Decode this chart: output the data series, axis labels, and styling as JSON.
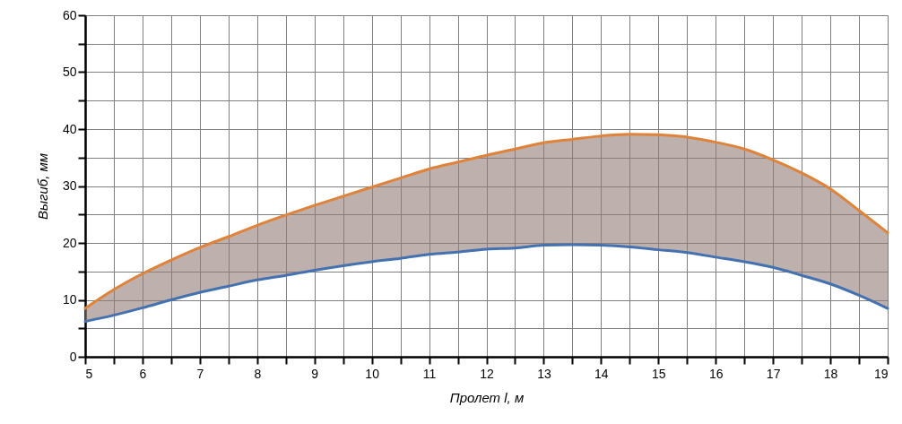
{
  "chart_data": {
    "type": "line",
    "xlabel": "Пролет l, м",
    "ylabel": "Выгиб, мм",
    "x": [
      5,
      5.5,
      6,
      6.5,
      7,
      7.5,
      8,
      8.5,
      9,
      9.5,
      10,
      10.5,
      11,
      11.5,
      12,
      12.5,
      13,
      13.5,
      14,
      14.5,
      15,
      15.5,
      16,
      16.5,
      17,
      17.5,
      18,
      18.5,
      19
    ],
    "series": [
      {
        "color": "#e0833a",
        "values": [
          8.5,
          11.8,
          14.6,
          17,
          19.2,
          21.1,
          23.1,
          24.9,
          26.6,
          28.2,
          29.8,
          31.4,
          33,
          34.2,
          35.4,
          36.5,
          37.6,
          38.2,
          38.8,
          39.1,
          39,
          38.6,
          37.7,
          36.5,
          34.6,
          32.3,
          29.5,
          25.7,
          21.8
        ],
        "lower": [
          6.2,
          7.3,
          8.6,
          10,
          11.3,
          12.4,
          13.5,
          14.3,
          15.2,
          16,
          16.7,
          17.3,
          18,
          18.4,
          18.9,
          19.1,
          19.6,
          19.7,
          19.6,
          19.3,
          18.8,
          18.3,
          17.5,
          16.7,
          15.7,
          14.3,
          12.8,
          10.8,
          8.5
        ],
        "upper": [
          8.5,
          11.8,
          14.6,
          17,
          19.2,
          21.1,
          23.1,
          24.9,
          26.6,
          28.2,
          29.8,
          31.4,
          33,
          34.2,
          35.4,
          36.5,
          37.6,
          38.2,
          38.8,
          39.1,
          39,
          38.6,
          37.7,
          36.5,
          34.6,
          32.3,
          29.5,
          25.7,
          21.8
        ]
      },
      {
        "color": "#4472b0",
        "values": [
          6.2,
          7.3,
          8.6,
          10,
          11.3,
          12.4,
          13.5,
          14.3,
          15.2,
          16,
          16.7,
          17.3,
          18,
          18.4,
          18.9,
          19.1,
          19.6,
          19.7,
          19.6,
          19.3,
          18.8,
          18.3,
          17.5,
          16.7,
          15.7,
          14.3,
          12.8,
          10.8,
          8.5
        ]
      }
    ],
    "xlim": [
      5,
      19
    ],
    "xticks": [
      5,
      {
        "value": 5.5,
        "label": null
      },
      6,
      {
        "value": 6.5,
        "label": null
      },
      7,
      {
        "value": 7.5,
        "label": null
      },
      8,
      {
        "value": 8.5,
        "label": null
      },
      9,
      {
        "value": 9.5,
        "label": null
      },
      10,
      {
        "value": 10.5,
        "label": null
      },
      11,
      {
        "value": 11.5,
        "label": null
      },
      12,
      {
        "value": 12.5,
        "label": null
      },
      13,
      {
        "value": 13.5,
        "label": null
      },
      14,
      {
        "value": 14.5,
        "label": null
      },
      15,
      {
        "value": 15.5,
        "label": null
      },
      16,
      {
        "value": 16.5,
        "label": null
      },
      17,
      {
        "value": 17.5,
        "label": null
      },
      18,
      {
        "value": 18.5,
        "label": null
      },
      19
    ],
    "ylim": [
      0,
      60
    ],
    "yticks": [
      0,
      {
        "value": 5,
        "label": null
      },
      10,
      {
        "value": 15,
        "label": null
      },
      20,
      {
        "value": 25,
        "label": null
      },
      30,
      {
        "value": 35,
        "label": null
      },
      40,
      {
        "value": 45,
        "label": null
      },
      50,
      {
        "value": 55,
        "label": null
      },
      60
    ],
    "grid": true,
    "marker": "none",
    "line_style": "solid"
  }
}
